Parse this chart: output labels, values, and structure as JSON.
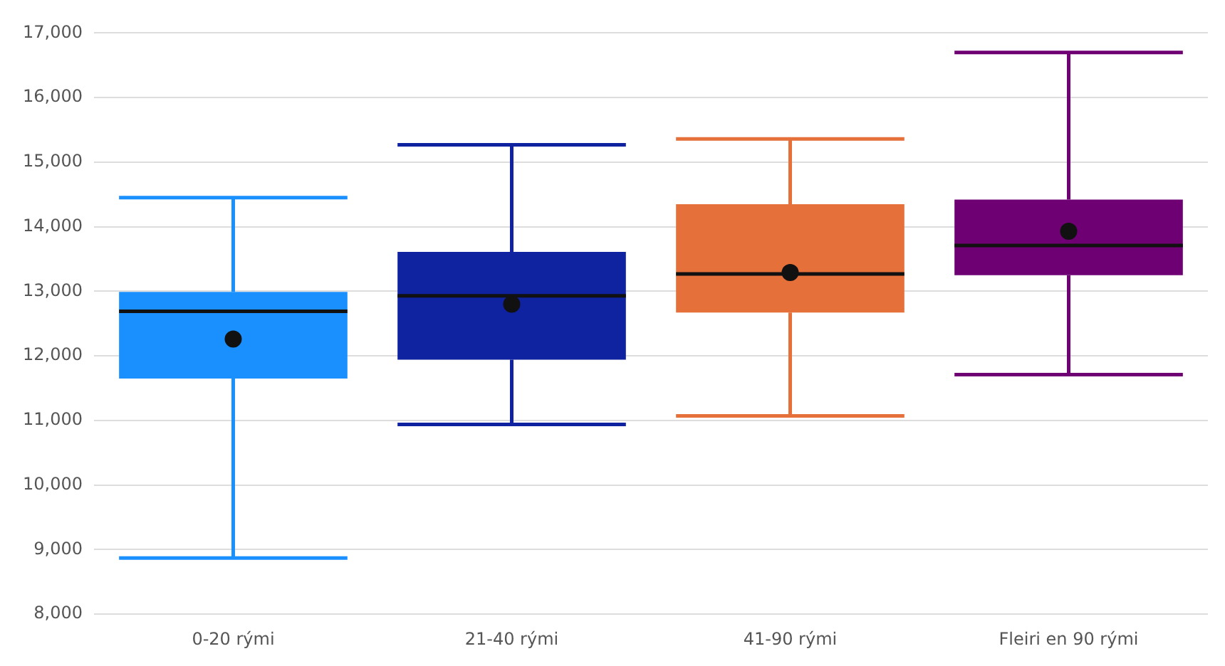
{
  "chart_data": {
    "type": "box",
    "categories": [
      "0-20 rými",
      "21-40 rými",
      "41-90 rými",
      "Fleiri en 90 rými"
    ],
    "colors": [
      "#1a90ff",
      "#0f23a0",
      "#e5703a",
      "#6e0074"
    ],
    "boxes": [
      {
        "low": 8870,
        "q1": 11650,
        "median": 12690,
        "q3": 12990,
        "high": 14450,
        "mean": 12260
      },
      {
        "low": 10940,
        "q1": 11940,
        "median": 12930,
        "q3": 13610,
        "high": 15270,
        "mean": 12800
      },
      {
        "low": 11070,
        "q1": 12670,
        "median": 13270,
        "q3": 14350,
        "high": 15360,
        "mean": 13290
      },
      {
        "low": 11710,
        "q1": 13250,
        "median": 13710,
        "q3": 14420,
        "high": 16700,
        "mean": 13930
      }
    ],
    "ylim": [
      8000,
      17000
    ],
    "yticks": [
      {
        "value": 8000,
        "label": "8,000"
      },
      {
        "value": 9000,
        "label": "9,000"
      },
      {
        "value": 10000,
        "label": "10,000"
      },
      {
        "value": 11000,
        "label": "11,000"
      },
      {
        "value": 12000,
        "label": "12,000"
      },
      {
        "value": 13000,
        "label": "13,000"
      },
      {
        "value": 14000,
        "label": "14,000"
      },
      {
        "value": 15000,
        "label": "15,000"
      },
      {
        "value": 16000,
        "label": "16,000"
      },
      {
        "value": 17000,
        "label": "17,000"
      }
    ],
    "grid": "y",
    "legend": false
  }
}
